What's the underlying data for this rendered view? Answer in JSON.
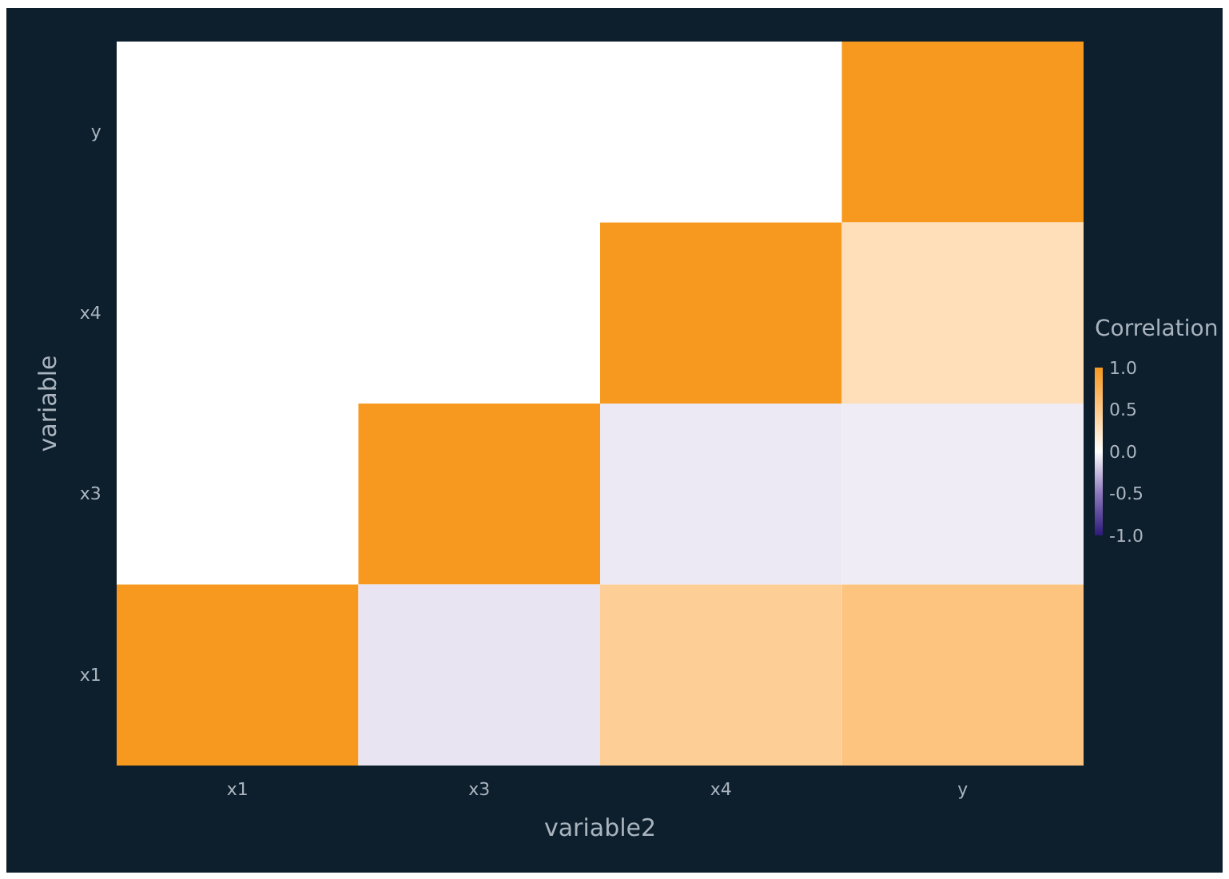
{
  "chart_data": {
    "type": "heatmap",
    "xlabel": "variable2",
    "ylabel": "variable",
    "clabel": "Correlation",
    "categories": [
      "x1",
      "x3",
      "x4",
      "y"
    ],
    "y_categories": [
      "y",
      "x4",
      "x3",
      "x1"
    ],
    "cells": [
      [
        null,
        null,
        null,
        1
      ],
      [
        null,
        null,
        1,
        0.3
      ],
      [
        null,
        1,
        -0.08,
        -0.07
      ],
      [
        1,
        -0.1,
        0.45,
        0.55
      ]
    ],
    "clim": [
      -1,
      1
    ],
    "cticks": [
      {
        "value": 1,
        "label": "1.0"
      },
      {
        "value": 0.5,
        "label": "0.5"
      },
      {
        "value": 0,
        "label": "0.0"
      },
      {
        "value": -0.5,
        "label": "-0.5"
      },
      {
        "value": -1,
        "label": "-1.0"
      }
    ]
  }
}
